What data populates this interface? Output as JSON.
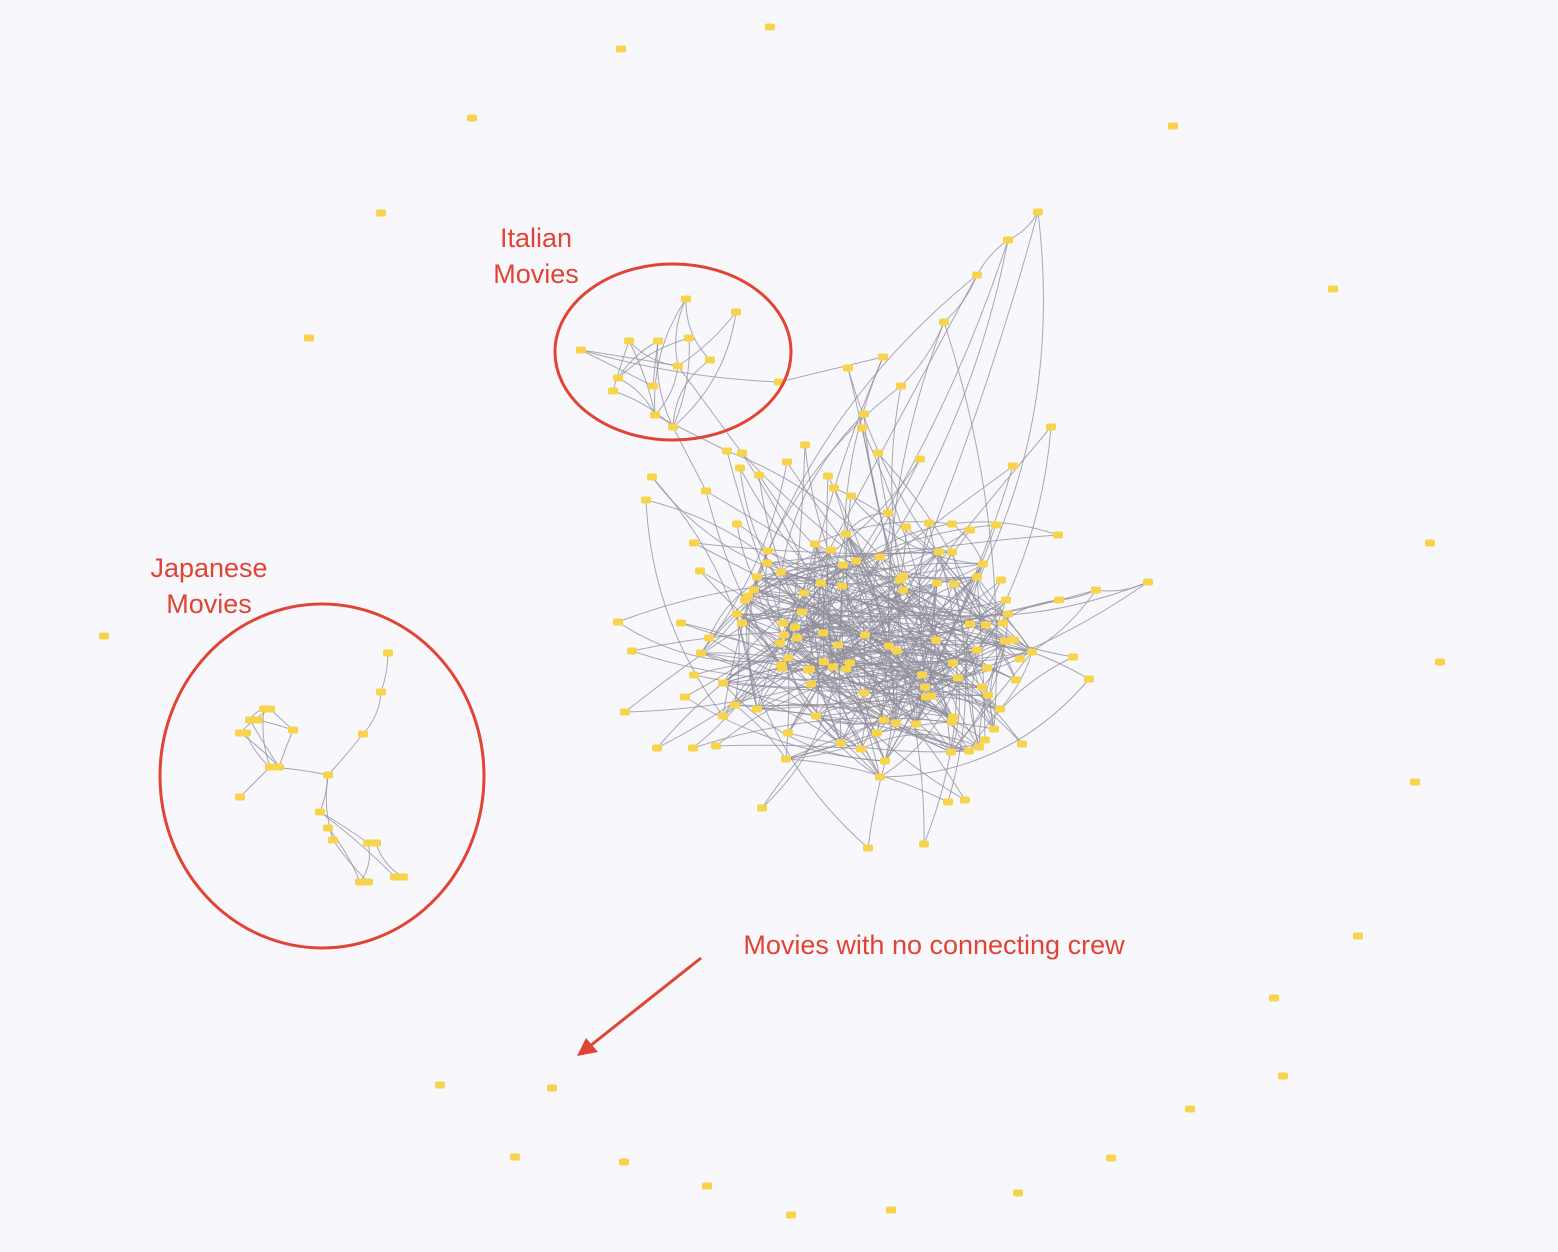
{
  "colors": {
    "background": "#f8f7fc",
    "node": "#f8d44c",
    "edge": "#8f8e99",
    "annotation": "#e04434"
  },
  "annotations": {
    "italian_line1": "Italian",
    "italian_line2": "Movies",
    "japanese_line1": "Japanese",
    "japanese_line2": "Movies",
    "isolated": "Movies with no connecting crew"
  }
}
